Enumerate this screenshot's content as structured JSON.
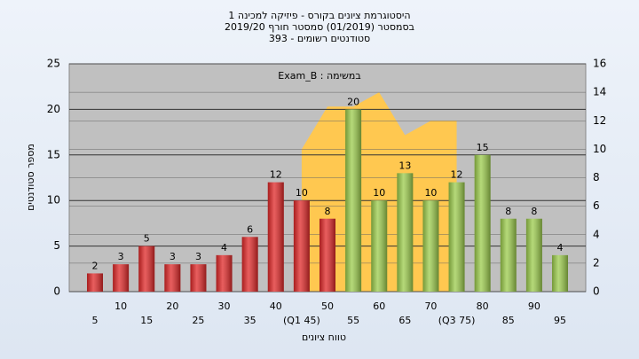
{
  "chart_data": {
    "type": "bar",
    "title": [
      "היסטוגרמת ציונים בקורס - פיזיקה למכינה 1",
      "בסמסטר (01/2019) סמסטר חורף 2019/20",
      "סטודנטים רשומים - 393"
    ],
    "annotation": "במשימה : Exam_B",
    "x_label": "טווח ציונים",
    "y_label": "מספר סטודנטים",
    "categories": [
      "5",
      "10",
      "15",
      "20",
      "25",
      "30",
      "35",
      "40",
      "(Q1 45)",
      "50",
      "55",
      "60",
      "65",
      "70",
      "(Q3 75)",
      "80",
      "85",
      "90",
      "95"
    ],
    "series": [
      {
        "color": "#e02828",
        "values": [
          2,
          3,
          5,
          3,
          3,
          4,
          6,
          12,
          10,
          8,
          null,
          null,
          null,
          null,
          null,
          null,
          null,
          null,
          null
        ]
      },
      {
        "color": "#9ccc4c",
        "values": [
          null,
          null,
          null,
          null,
          null,
          null,
          null,
          null,
          null,
          null,
          20,
          10,
          13,
          10,
          12,
          15,
          8,
          8,
          4
        ]
      },
      {
        "type": "area",
        "axis": "y2",
        "color": "#ffc850",
        "values": [
          null,
          null,
          null,
          null,
          null,
          null,
          null,
          null,
          10,
          13,
          13,
          14,
          11,
          12,
          12,
          null,
          null,
          null,
          null
        ]
      }
    ],
    "ylim": [
      0,
      25
    ],
    "yticks": [
      0,
      5,
      10,
      15,
      20,
      25
    ],
    "y2lim": [
      0,
      16
    ],
    "y2ticks": [
      0,
      2,
      4,
      6,
      8,
      10,
      12,
      14,
      16
    ],
    "grid": true
  }
}
